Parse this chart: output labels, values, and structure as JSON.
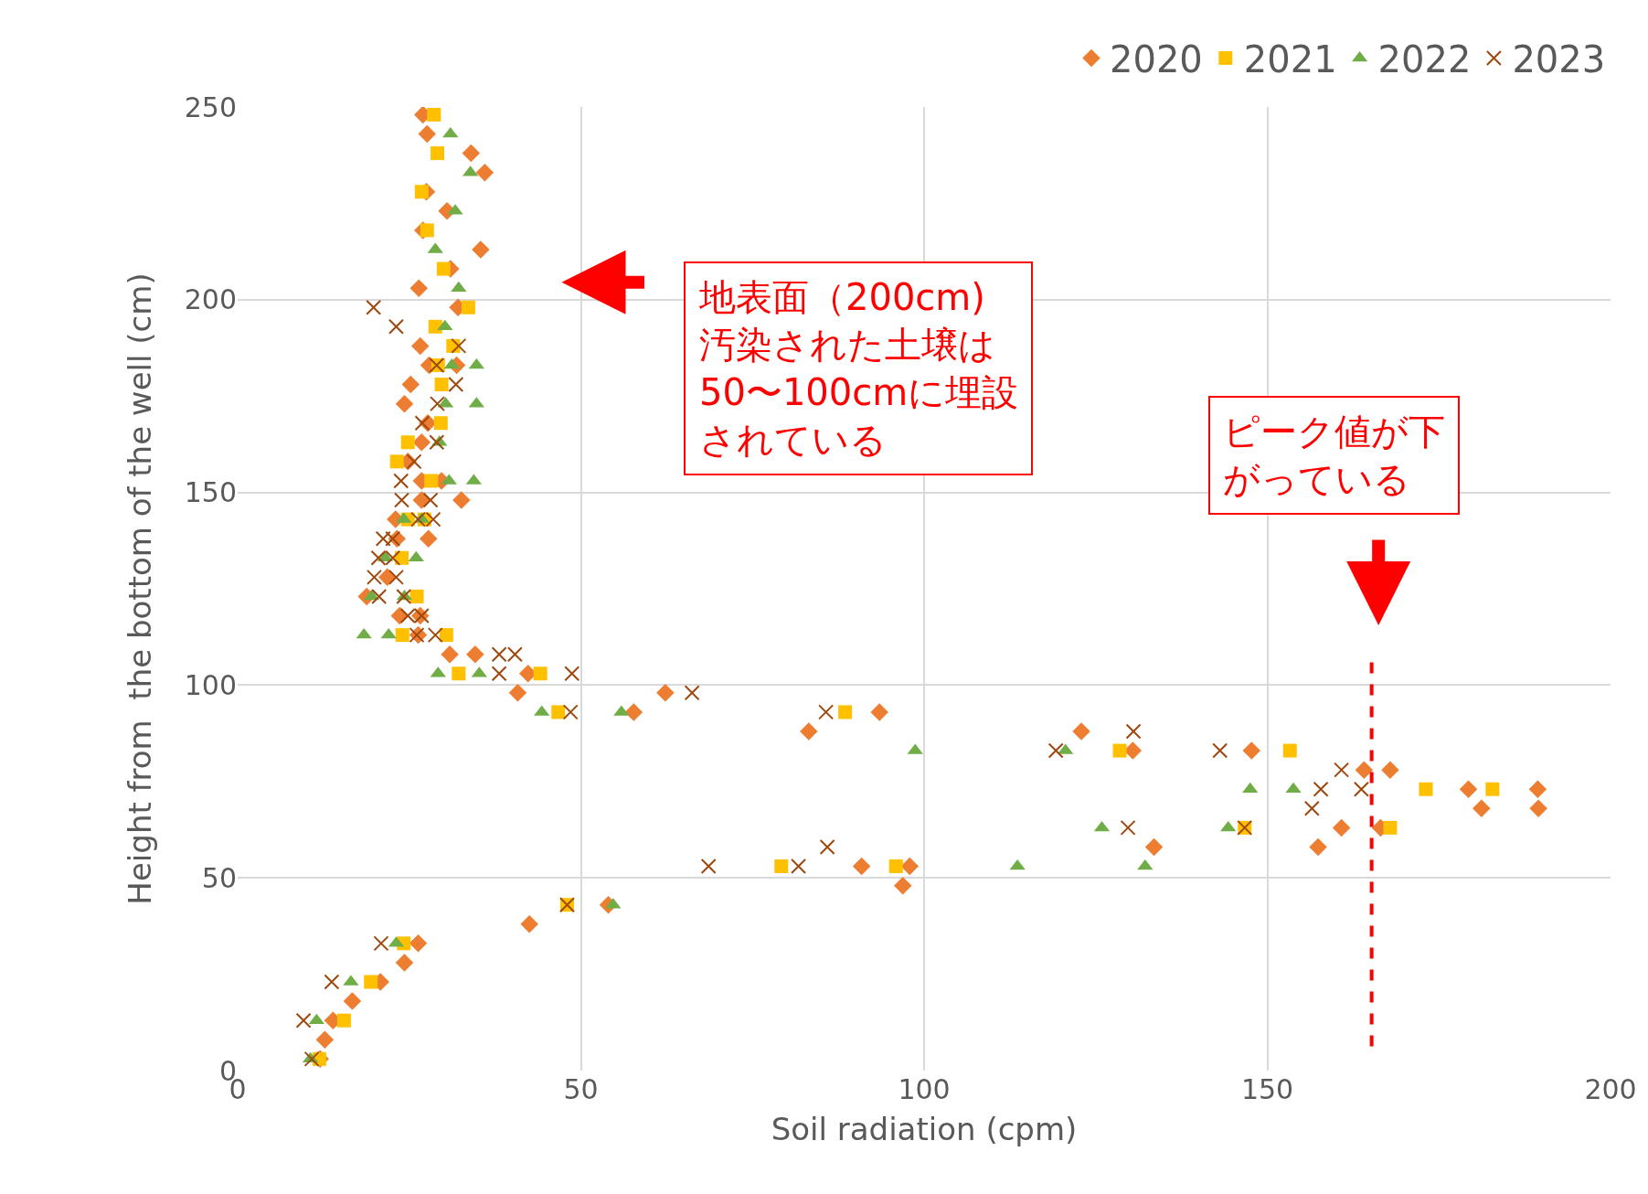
{
  "chart_data": {
    "type": "scatter",
    "xlabel": "Soil radiation (cpm)",
    "ylabel": "Height from  the bottom of the well (cm)",
    "xlim": [
      0,
      200
    ],
    "ylim": [
      0,
      250
    ],
    "xticks": [
      0,
      50,
      100,
      150,
      200
    ],
    "yticks": [
      0,
      50,
      100,
      150,
      200,
      250
    ],
    "grid": true,
    "legend": "top right",
    "series": [
      {
        "name": "2020",
        "color": "#ed7d31",
        "marker": "diamond",
        "x": [
          27.0,
          27.6,
          34.0,
          36.0,
          27.5,
          30.5,
          27.0,
          35.4,
          31.0,
          26.4,
          32.1,
          26.6,
          27.9,
          31.9,
          25.2,
          24.3,
          27.7,
          26.8,
          24.8,
          26.8,
          29.7,
          26.8,
          32.6,
          23.0,
          23.2,
          27.8,
          21.8,
          18.8,
          23.6,
          26.6,
          26.3,
          30.9,
          34.6,
          42.3,
          40.8,
          62.3,
          57.7,
          93.5,
          83.2,
          122.9,
          130.4,
          147.7,
          164.1,
          167.9,
          179.3,
          189.4,
          181.2,
          189.5,
          160.8,
          166.5,
          133.5,
          157.4,
          90.9,
          97.9,
          96.9,
          54.0,
          42.5,
          26.3,
          24.3,
          20.8,
          16.7,
          13.9,
          12.7,
          12.0
        ],
        "values": [
          248,
          243,
          238,
          233,
          228,
          223,
          218,
          213,
          208,
          203,
          198,
          188,
          183,
          183,
          178,
          173,
          168,
          163,
          158,
          153,
          153,
          148,
          148,
          143,
          138,
          138,
          128,
          123,
          118,
          118,
          113,
          108,
          108,
          103,
          98,
          98,
          93,
          93,
          88,
          88,
          83,
          83,
          78,
          78,
          73,
          73,
          68,
          68,
          63,
          63,
          58,
          58,
          53,
          53,
          48,
          43,
          38,
          33,
          28,
          23,
          18,
          13,
          8,
          3
        ]
      },
      {
        "name": "2021",
        "color": "#ffc000",
        "marker": "square",
        "x": [
          28.6,
          29.1,
          26.8,
          27.6,
          30.0,
          33.6,
          28.8,
          31.4,
          29.2,
          29.7,
          29.6,
          24.8,
          23.2,
          28.2,
          24.8,
          27.2,
          23.9,
          26.1,
          24.0,
          30.4,
          32.2,
          44.1,
          46.7,
          88.5,
          128.5,
          153.3,
          173.1,
          182.8,
          146.7,
          167.9,
          79.2,
          95.9,
          48.0,
          24.2,
          19.4,
          15.5,
          11.9
        ],
        "values": [
          248,
          238,
          228,
          218,
          208,
          198,
          193,
          188,
          183,
          178,
          168,
          163,
          158,
          153,
          143,
          143,
          133,
          123,
          113,
          113,
          103,
          103,
          93,
          93,
          83,
          83,
          73,
          73,
          63,
          63,
          53,
          53,
          43,
          33,
          23,
          13,
          3
        ]
      },
      {
        "name": "2022",
        "color": "#70ad47",
        "marker": "triangle",
        "x": [
          31.0,
          33.9,
          31.7,
          28.8,
          32.2,
          30.2,
          31.2,
          34.8,
          30.3,
          34.8,
          29.4,
          30.8,
          34.4,
          24.2,
          26.8,
          21.5,
          26.0,
          19.5,
          24.3,
          18.4,
          22.0,
          29.2,
          35.2,
          44.3,
          55.9,
          98.7,
          120.6,
          147.5,
          153.8,
          125.9,
          144.3,
          113.6,
          132.2,
          54.7,
          23.1,
          16.5,
          11.5,
          10.6
        ],
        "values": [
          243,
          233,
          223,
          213,
          203,
          193,
          183,
          183,
          173,
          173,
          163,
          153,
          153,
          143,
          143,
          133,
          133,
          123,
          123,
          113,
          113,
          103,
          103,
          93,
          93,
          83,
          83,
          73,
          73,
          63,
          63,
          53,
          53,
          43,
          33,
          23,
          13,
          3
        ]
      },
      {
        "name": "2023",
        "color": "#9e480e",
        "marker": "cross",
        "x": [
          19.8,
          23.1,
          32.2,
          29.0,
          31.8,
          29.1,
          26.9,
          29.0,
          25.7,
          23.8,
          23.9,
          28.1,
          26.3,
          28.5,
          21.2,
          22.6,
          20.5,
          22.6,
          19.9,
          23.1,
          20.6,
          24.2,
          24.8,
          26.8,
          26.1,
          28.8,
          38.1,
          40.4,
          38.1,
          48.7,
          66.2,
          48.5,
          85.7,
          130.5,
          119.2,
          143.1,
          160.8,
          157.8,
          163.7,
          156.5,
          129.7,
          146.7,
          85.9,
          68.6,
          81.7,
          48.0,
          20.9,
          13.7,
          9.6,
          10.8
        ],
        "values": [
          198,
          193,
          188,
          183,
          178,
          173,
          168,
          163,
          158,
          153,
          148,
          148,
          143,
          143,
          138,
          138,
          133,
          133,
          128,
          128,
          123,
          123,
          118,
          118,
          113,
          113,
          108,
          108,
          103,
          103,
          98,
          93,
          93,
          88,
          83,
          83,
          78,
          73,
          73,
          68,
          63,
          63,
          58,
          53,
          53,
          43,
          33,
          23,
          13,
          3
        ]
      },
      {
        "type": "line",
        "color": "#ff0000",
        "line_style": "dashed",
        "x": [
          165.2,
          165.2
        ],
        "values": [
          6.3,
          106.4
        ]
      }
    ],
    "annotations": [
      "地表面（200cm)汚染された土壌は50〜100cmに埋設されている",
      "ピーク値が下がっている"
    ]
  }
}
